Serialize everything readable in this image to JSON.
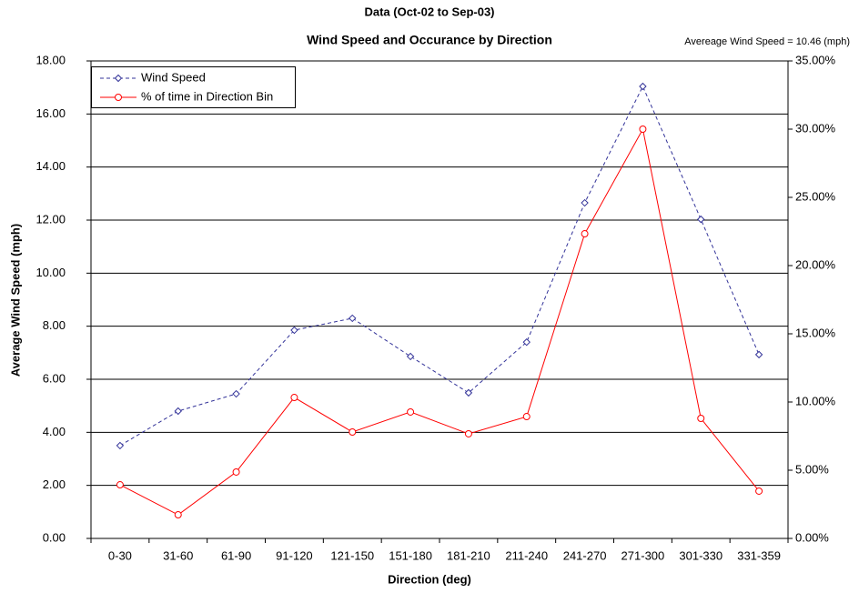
{
  "chart_data": {
    "type": "line",
    "title": "Data (Oct-02 to Sep-03)",
    "subtitle": "Wind Speed and Occurance by Direction",
    "annotation": "Avereage Wind Speed = 10.46 (mph)",
    "x_label": "Direction (deg)",
    "y_label": "Average Wind Speed (mph)",
    "categories": [
      "0-30",
      "31-60",
      "61-90",
      "91-120",
      "121-150",
      "151-180",
      "181-210",
      "211-240",
      "241-270",
      "271-300",
      "301-330",
      "331-359"
    ],
    "series": [
      {
        "name": "Wind Speed",
        "color": "#333399",
        "dash": true,
        "marker": "diamond",
        "values": [
          3.5,
          4.8,
          5.45,
          7.85,
          8.3,
          6.86,
          5.49,
          7.4,
          12.65,
          17.04,
          12.03,
          6.93
        ]
      },
      {
        "name": "% of time in Direction Bin",
        "color": "#ff0000",
        "dash": false,
        "marker": "circle",
        "axis": "y2",
        "values": [
          3.93,
          1.73,
          4.87,
          10.33,
          7.8,
          9.27,
          7.67,
          8.93,
          22.33,
          30.0,
          8.8,
          3.47
        ]
      }
    ],
    "ylim": [
      0,
      18
    ],
    "yticks": [
      {
        "value": 0,
        "label": "0.00"
      },
      {
        "value": 2,
        "label": "2.00"
      },
      {
        "value": 4,
        "label": "4.00"
      },
      {
        "value": 6,
        "label": "6.00"
      },
      {
        "value": 8,
        "label": "8.00"
      },
      {
        "value": 10,
        "label": "10.00"
      },
      {
        "value": 12,
        "label": "12.00"
      },
      {
        "value": 14,
        "label": "14.00"
      },
      {
        "value": 16,
        "label": "16.00"
      },
      {
        "value": 18,
        "label": "18.00"
      }
    ],
    "y2lim": [
      0,
      35
    ],
    "y2ticks": [
      {
        "value": 0,
        "label": "0.00%"
      },
      {
        "value": 5,
        "label": "5.00%"
      },
      {
        "value": 10,
        "label": "10.00%"
      },
      {
        "value": 15,
        "label": "15.00%"
      },
      {
        "value": 20,
        "label": "20.00%"
      },
      {
        "value": 25,
        "label": "25.00%"
      },
      {
        "value": 30,
        "label": "30.00%"
      },
      {
        "value": 35,
        "label": "35.00%"
      }
    ],
    "grid": true,
    "legend": "top-left"
  }
}
